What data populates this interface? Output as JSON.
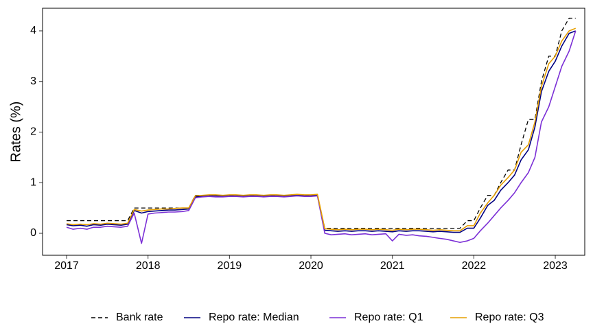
{
  "chart_data": {
    "type": "line",
    "ylabel": "Rates (%)",
    "x": [
      2017.0,
      2017.08,
      2017.17,
      2017.25,
      2017.33,
      2017.42,
      2017.5,
      2017.58,
      2017.67,
      2017.75,
      2017.83,
      2017.92,
      2018.0,
      2018.08,
      2018.17,
      2018.25,
      2018.33,
      2018.42,
      2018.5,
      2018.58,
      2018.67,
      2018.75,
      2018.83,
      2018.92,
      2019.0,
      2019.08,
      2019.17,
      2019.25,
      2019.33,
      2019.42,
      2019.5,
      2019.58,
      2019.67,
      2019.75,
      2019.83,
      2019.92,
      2020.0,
      2020.08,
      2020.17,
      2020.25,
      2020.33,
      2020.42,
      2020.5,
      2020.58,
      2020.67,
      2020.75,
      2020.83,
      2020.92,
      2021.0,
      2021.08,
      2021.17,
      2021.25,
      2021.33,
      2021.42,
      2021.5,
      2021.58,
      2021.67,
      2021.75,
      2021.83,
      2021.92,
      2022.0,
      2022.08,
      2022.17,
      2022.25,
      2022.33,
      2022.42,
      2022.5,
      2022.58,
      2022.67,
      2022.75,
      2022.83,
      2022.92,
      2023.0,
      2023.08,
      2023.17,
      2023.25
    ],
    "series": [
      {
        "name": "Bank rate",
        "color": "#000000",
        "linestyle": "dashed",
        "values": [
          0.25,
          0.25,
          0.25,
          0.25,
          0.25,
          0.25,
          0.25,
          0.25,
          0.25,
          0.25,
          0.5,
          0.5,
          0.5,
          0.5,
          0.5,
          0.5,
          0.5,
          0.5,
          0.5,
          0.75,
          0.75,
          0.75,
          0.75,
          0.75,
          0.75,
          0.75,
          0.75,
          0.75,
          0.75,
          0.75,
          0.75,
          0.75,
          0.75,
          0.75,
          0.75,
          0.75,
          0.75,
          0.75,
          0.1,
          0.1,
          0.1,
          0.1,
          0.1,
          0.1,
          0.1,
          0.1,
          0.1,
          0.1,
          0.1,
          0.1,
          0.1,
          0.1,
          0.1,
          0.1,
          0.1,
          0.1,
          0.1,
          0.1,
          0.1,
          0.25,
          0.25,
          0.5,
          0.75,
          0.75,
          1,
          1.25,
          1.25,
          1.75,
          2.25,
          2.25,
          3,
          3.5,
          3.5,
          4,
          4.25,
          4.25
        ]
      },
      {
        "name": "Repo rate: Median",
        "color": "#000080",
        "linestyle": "solid",
        "values": [
          0.17,
          0.15,
          0.16,
          0.14,
          0.17,
          0.16,
          0.18,
          0.17,
          0.16,
          0.18,
          0.45,
          0.4,
          0.43,
          0.44,
          0.45,
          0.46,
          0.46,
          0.47,
          0.48,
          0.72,
          0.73,
          0.74,
          0.74,
          0.73,
          0.74,
          0.74,
          0.73,
          0.74,
          0.74,
          0.73,
          0.74,
          0.74,
          0.73,
          0.74,
          0.75,
          0.74,
          0.74,
          0.75,
          0.06,
          0.05,
          0.04,
          0.05,
          0.04,
          0.05,
          0.05,
          0.04,
          0.05,
          0.04,
          0.03,
          0.05,
          0.04,
          0.05,
          0.05,
          0.04,
          0.03,
          0.04,
          0.03,
          0.02,
          0.02,
          0.1,
          0.1,
          0.3,
          0.55,
          0.65,
          0.85,
          1.0,
          1.15,
          1.45,
          1.65,
          2.1,
          2.8,
          3.2,
          3.4,
          3.7,
          3.95,
          4.0
        ]
      },
      {
        "name": "Repo rate: Q1",
        "color": "#7b2fd6",
        "linestyle": "solid",
        "values": [
          0.12,
          0.08,
          0.1,
          0.08,
          0.12,
          0.12,
          0.14,
          0.13,
          0.12,
          0.14,
          0.4,
          -0.2,
          0.38,
          0.4,
          0.41,
          0.42,
          0.42,
          0.43,
          0.45,
          0.7,
          0.72,
          0.73,
          0.72,
          0.72,
          0.73,
          0.73,
          0.72,
          0.73,
          0.73,
          0.72,
          0.73,
          0.73,
          0.72,
          0.73,
          0.74,
          0.73,
          0.73,
          0.74,
          0.0,
          -0.03,
          -0.02,
          -0.01,
          -0.03,
          -0.02,
          -0.01,
          -0.03,
          -0.02,
          -0.01,
          -0.15,
          -0.02,
          -0.04,
          -0.03,
          -0.05,
          -0.06,
          -0.08,
          -0.1,
          -0.12,
          -0.15,
          -0.18,
          -0.15,
          -0.1,
          0.05,
          0.2,
          0.35,
          0.5,
          0.65,
          0.8,
          1.0,
          1.2,
          1.5,
          2.2,
          2.5,
          2.9,
          3.3,
          3.6,
          4.0
        ]
      },
      {
        "name": "Repo rate: Q3",
        "color": "#e69f00",
        "linestyle": "solid",
        "values": [
          0.19,
          0.17,
          0.18,
          0.17,
          0.19,
          0.18,
          0.2,
          0.19,
          0.18,
          0.2,
          0.47,
          0.44,
          0.46,
          0.47,
          0.48,
          0.48,
          0.49,
          0.5,
          0.5,
          0.74,
          0.75,
          0.76,
          0.76,
          0.75,
          0.76,
          0.76,
          0.75,
          0.76,
          0.76,
          0.75,
          0.76,
          0.76,
          0.75,
          0.76,
          0.77,
          0.76,
          0.76,
          0.77,
          0.09,
          0.08,
          0.07,
          0.08,
          0.07,
          0.08,
          0.08,
          0.07,
          0.08,
          0.07,
          0.06,
          0.08,
          0.07,
          0.08,
          0.08,
          0.07,
          0.06,
          0.07,
          0.06,
          0.05,
          0.05,
          0.15,
          0.15,
          0.4,
          0.6,
          0.75,
          0.95,
          1.1,
          1.25,
          1.6,
          1.75,
          2.2,
          2.9,
          3.35,
          3.5,
          3.8,
          4.0,
          4.05
        ]
      }
    ],
    "xlim": [
      2016.705,
      2023.362
    ],
    "xticks": [
      2017,
      2018,
      2019,
      2020,
      2021,
      2022,
      2023
    ],
    "ylim": [
      -0.434,
      4.447
    ],
    "yticks": [
      0,
      1,
      2,
      3,
      4
    ],
    "grid": false,
    "legend": "bottom"
  }
}
